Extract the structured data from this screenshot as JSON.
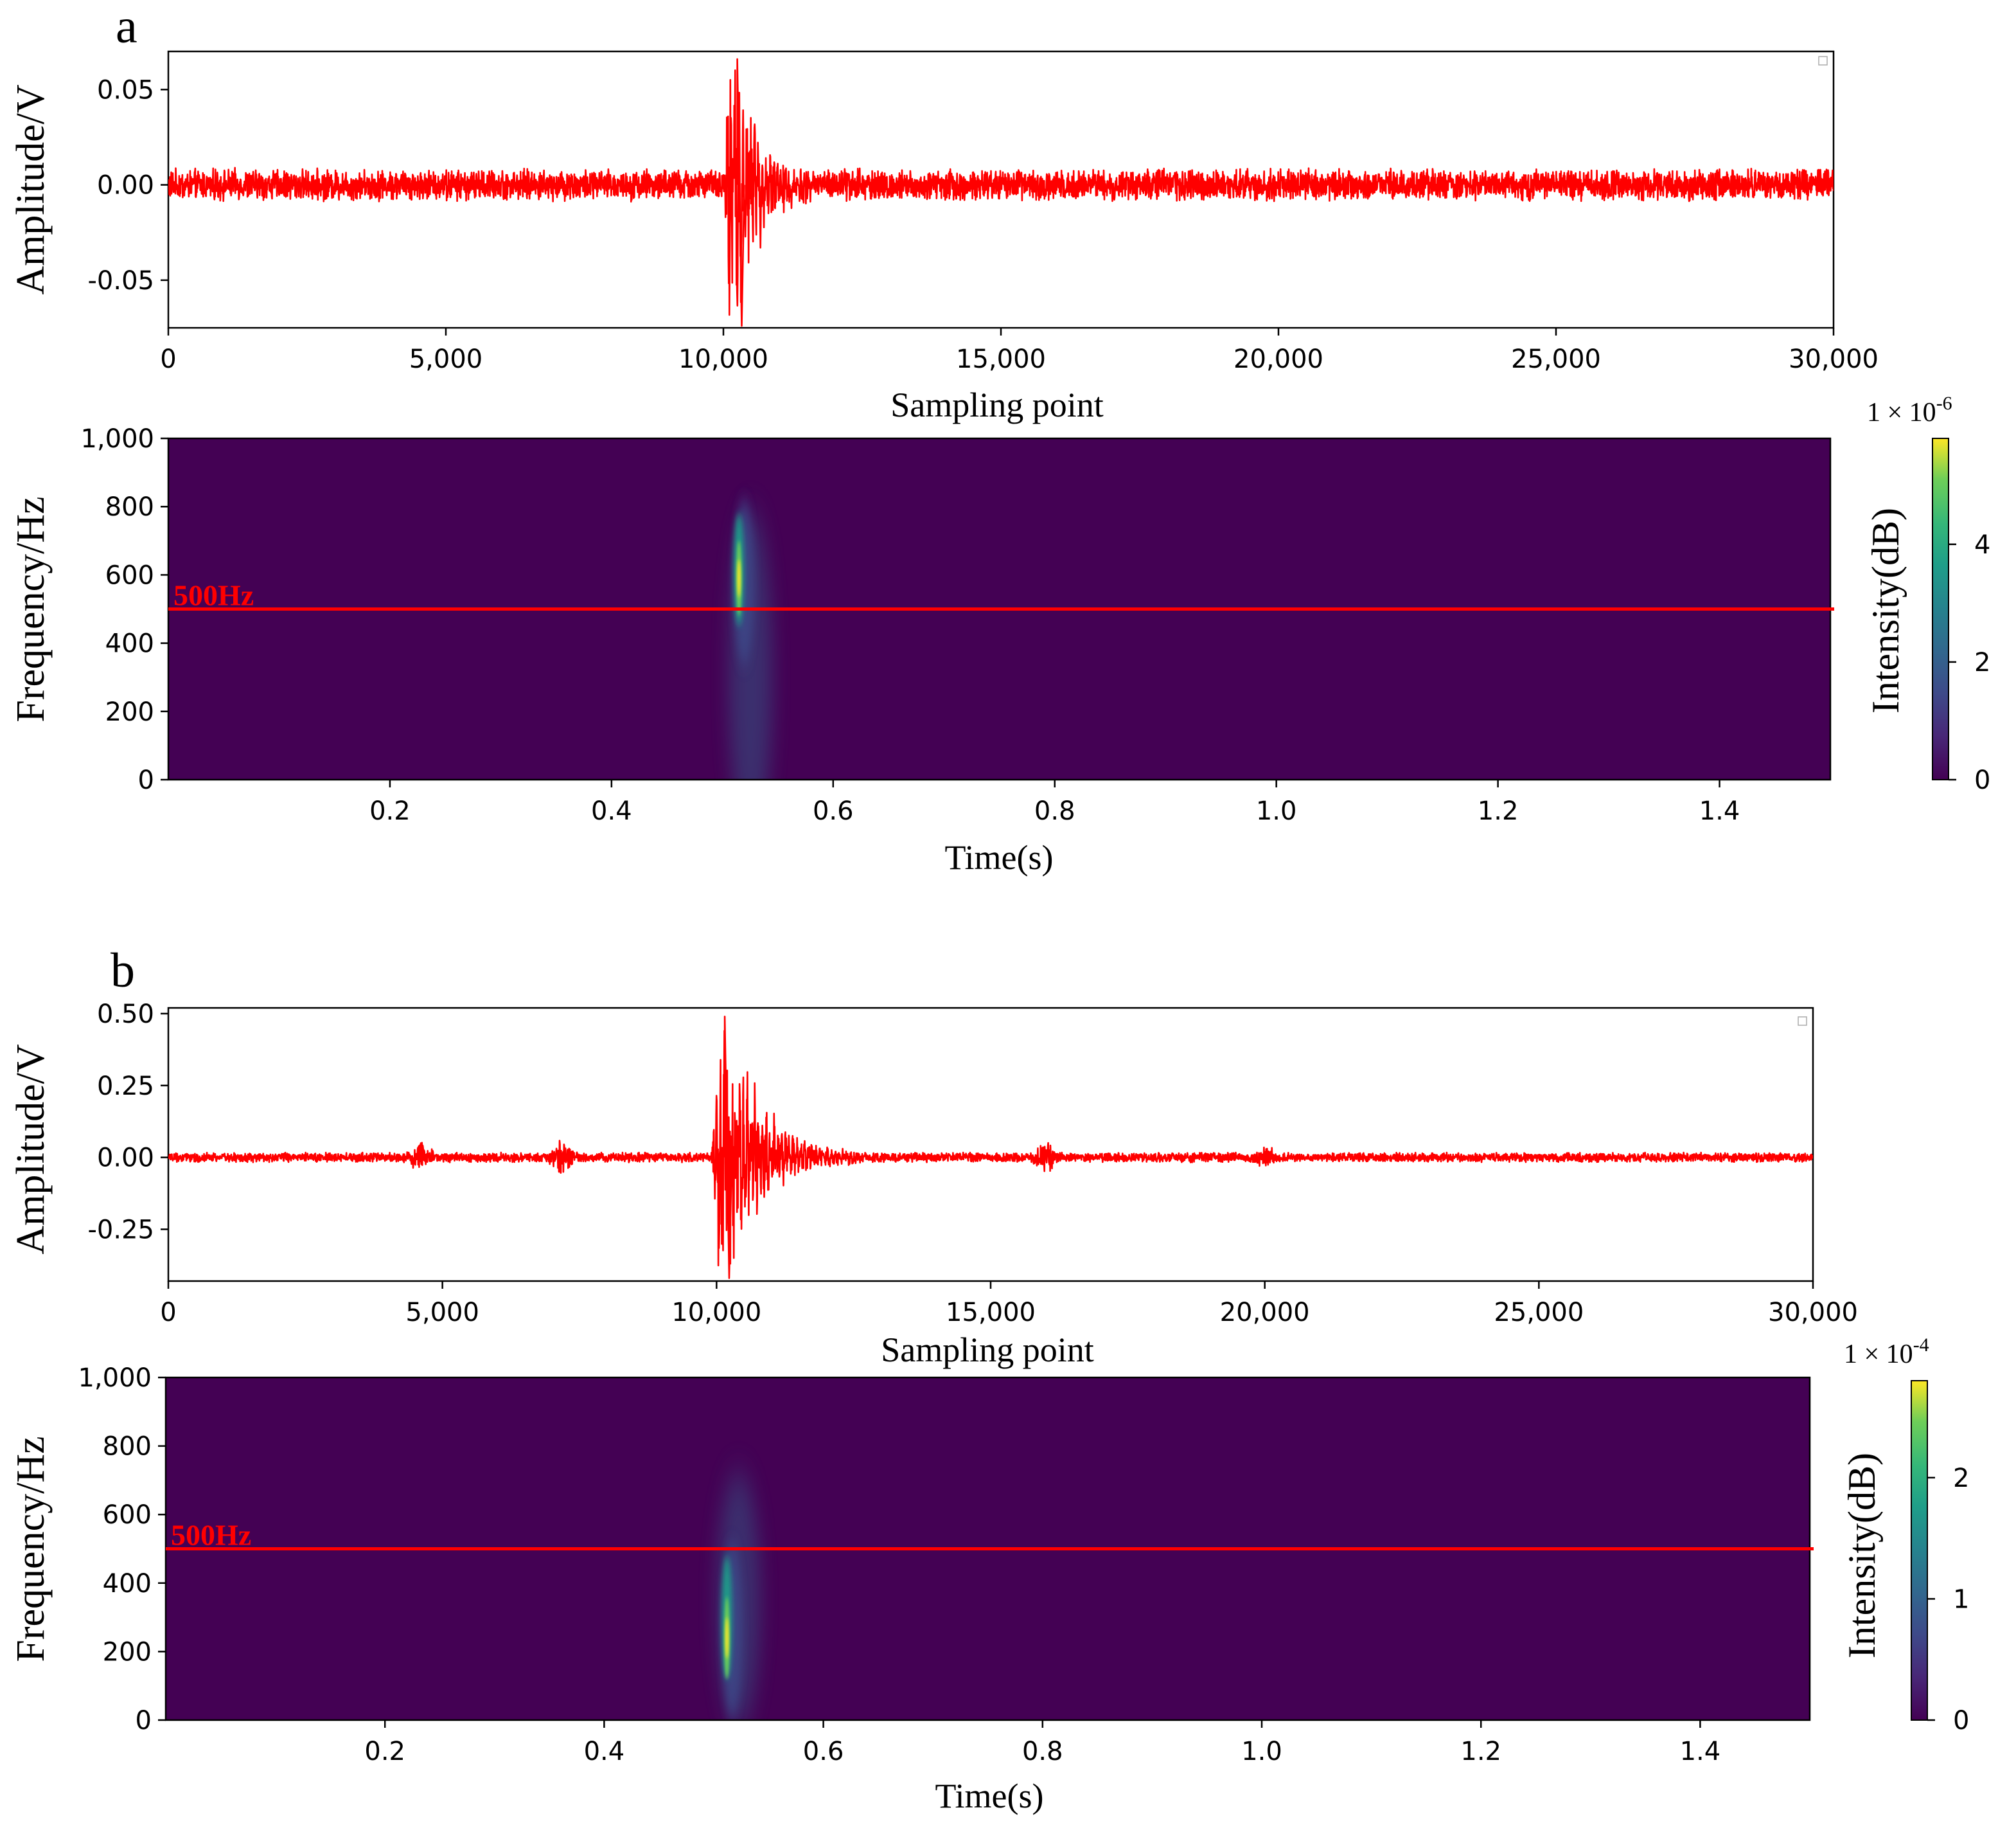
{
  "panels": [
    {
      "label": "a",
      "waveform": {
        "type": "line",
        "xlabel": "Sampling point",
        "ylabel": "Amplitude/V",
        "xlim": [
          0,
          30000
        ],
        "ylim": [
          -0.075,
          0.07
        ],
        "xticks": [
          0,
          5000,
          10000,
          15000,
          20000,
          25000,
          30000
        ],
        "xtick_labels": [
          "0",
          "5,000",
          "10,000",
          "15,000",
          "20,000",
          "25,000",
          "30,000"
        ],
        "yticks": [
          0.05,
          0.0,
          -0.05
        ],
        "ytick_labels": [
          "0.05",
          "0.00",
          "-0.05"
        ],
        "color": "#ff0000",
        "noise_amplitude": 0.006,
        "event": {
          "start": 10000,
          "peak_positive": 0.066,
          "peak_negative": -0.074,
          "decay_end": 12000
        },
        "bursts": []
      },
      "spectrogram": {
        "type": "heatmap",
        "xlabel": "Time(s)",
        "ylabel": "Frequency/Hz",
        "xlim": [
          0,
          1.5
        ],
        "ylim": [
          0,
          1000
        ],
        "xticks": [
          0.2,
          0.4,
          0.6,
          0.8,
          1.0,
          1.2,
          1.4
        ],
        "xtick_labels": [
          "0.2",
          "0.4",
          "0.6",
          "0.8",
          "1.0",
          "1.2",
          "1.4"
        ],
        "yticks": [
          1000,
          800,
          600,
          400,
          200,
          0
        ],
        "ytick_labels": [
          "1,000",
          "800",
          "600",
          "400",
          "200",
          "0"
        ],
        "reference_line": {
          "frequency": 500,
          "label": "500Hz",
          "color": "#ff0000"
        },
        "hotspot": {
          "time": 0.515,
          "freq_low": 450,
          "freq_high": 780,
          "freq_peak": 590,
          "peak": 5.5
        },
        "colorbar": {
          "label": "Intensity(dB)",
          "scale_label": "1 × 10",
          "scale_exponent": "-6",
          "range": [
            0,
            5.8
          ],
          "ticks": [
            0,
            2,
            4
          ],
          "tick_labels": [
            "0",
            "2",
            "4"
          ]
        }
      }
    },
    {
      "label": "b",
      "waveform": {
        "type": "line",
        "xlabel": "Sampling point",
        "ylabel": "Amplitude/V",
        "xlim": [
          0,
          30000
        ],
        "ylim": [
          -0.43,
          0.52
        ],
        "xticks": [
          0,
          5000,
          10000,
          15000,
          20000,
          25000,
          30000
        ],
        "xtick_labels": [
          "0",
          "5,000",
          "10,000",
          "15,000",
          "20,000",
          "25,000",
          "30,000"
        ],
        "yticks": [
          0.5,
          0.25,
          0.0,
          -0.25
        ],
        "ytick_labels": [
          "0.50",
          "0.25",
          "0.00",
          "-0.25"
        ],
        "color": "#ff0000",
        "noise_amplitude": 0.012,
        "event": {
          "start": 9900,
          "peak_positive": 0.49,
          "peak_negative": -0.42,
          "decay_end": 12800
        },
        "bursts": [
          {
            "center": 4600,
            "amplitude": 0.05
          },
          {
            "center": 7200,
            "amplitude": 0.06
          },
          {
            "center": 16000,
            "amplitude": 0.05
          },
          {
            "center": 20000,
            "amplitude": 0.03
          }
        ]
      },
      "spectrogram": {
        "type": "heatmap",
        "xlabel": "Time(s)",
        "ylabel": "Frequency/Hz",
        "xlim": [
          0,
          1.5
        ],
        "ylim": [
          0,
          1000
        ],
        "xticks": [
          0.2,
          0.4,
          0.6,
          0.8,
          1.0,
          1.2,
          1.4
        ],
        "xtick_labels": [
          "0.2",
          "0.4",
          "0.6",
          "0.8",
          "1.0",
          "1.2",
          "1.4"
        ],
        "yticks": [
          1000,
          800,
          600,
          400,
          200,
          0
        ],
        "ytick_labels": [
          "1,000",
          "800",
          "600",
          "400",
          "200",
          "0"
        ],
        "reference_line": {
          "frequency": 500,
          "label": "500Hz",
          "color": "#ff0000"
        },
        "hotspot": {
          "time": 0.512,
          "freq_low": 120,
          "freq_high": 480,
          "freq_peak": 240,
          "peak": 2.7
        },
        "colorbar": {
          "label": "Intensity(dB)",
          "scale_label": "1 × 10",
          "scale_exponent": "-4",
          "range": [
            0,
            2.8
          ],
          "ticks": [
            0,
            1,
            2
          ],
          "tick_labels": [
            "0",
            "1",
            "2"
          ]
        }
      }
    }
  ]
}
